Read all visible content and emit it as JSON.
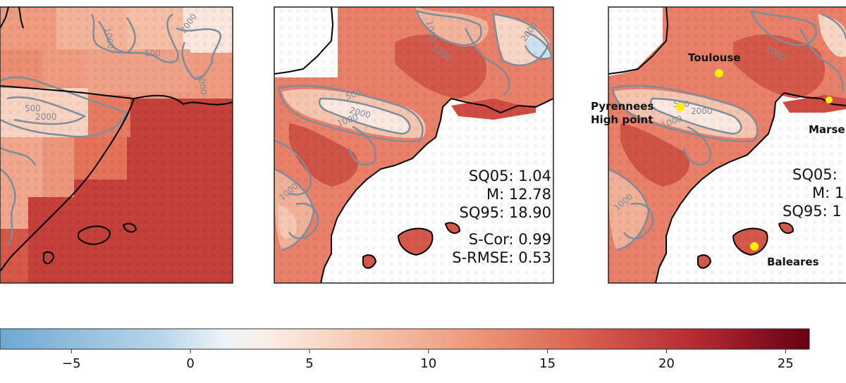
{
  "panels": [
    {
      "name": "panel-left"
    },
    {
      "name": "panel-middle",
      "stats": {
        "sq05": "SQ05: 1.04",
        "m": "M: 12.78",
        "sq95": "SQ95: 18.90",
        "scor": "S-Cor: 0.99",
        "srmse": "S-RMSE: 0.53"
      }
    },
    {
      "name": "panel-right",
      "stats": {
        "sq05": "SQ05:",
        "m": "M: 1",
        "sq95": "SQ95: 1"
      },
      "places": {
        "toulouse": "Toulouse",
        "pyrenees_line1": "Pyrennees",
        "pyrenees_line2": "High point",
        "marseille": "Marse",
        "baleares": "Baleares"
      }
    }
  ],
  "contour_labels": {
    "c500": "500",
    "c1000": "1000",
    "c2000": "2000"
  },
  "colorbar": {
    "range": [
      -8,
      26
    ],
    "ticks": [
      "−5",
      "0",
      "5",
      "10",
      "15",
      "20",
      "25"
    ],
    "tick_values": [
      -5,
      0,
      5,
      10,
      15,
      20,
      25
    ],
    "colormap": "RdBu_r (blue-white-red)"
  },
  "colors": {
    "land_warm": "#e8806a",
    "sea_hot": "#c93a35",
    "contour": "#7f8c99",
    "coast": "#000000",
    "marker": "#ffee00"
  }
}
